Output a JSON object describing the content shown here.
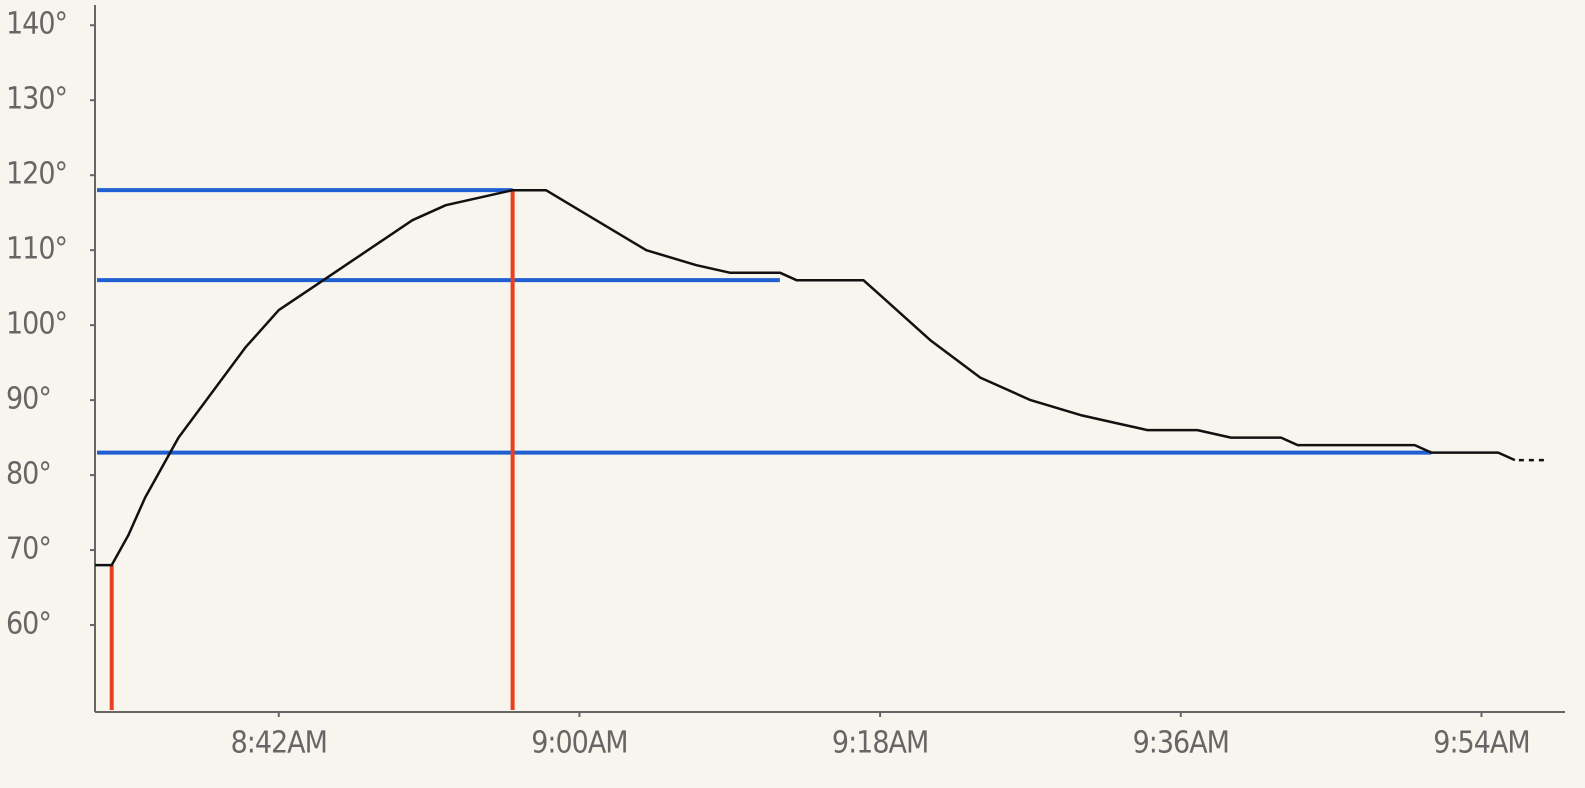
{
  "chart_data": {
    "type": "line",
    "color": "#111111",
    "x": [
      "8:31AM",
      "8:32AM",
      "8:33AM",
      "8:34AM",
      "8:36AM",
      "8:38AM",
      "8:40AM",
      "8:42AM",
      "8:44AM",
      "8:46AM",
      "8:48AM",
      "8:50AM",
      "8:52AM",
      "8:54AM",
      "8:56AM",
      "8:58AM",
      "9:01AM",
      "9:04AM",
      "9:07AM",
      "9:09AM",
      "9:12AM",
      "9:13AM",
      "9:17AM",
      "9:18AM",
      "9:21AM",
      "9:24AM",
      "9:27AM",
      "9:30AM",
      "9:32AM",
      "9:34AM",
      "9:37AM",
      "9:39AM",
      "9:42AM",
      "9:43AM",
      "9:50AM",
      "9:51AM",
      "9:55AM",
      "9:56AM"
    ],
    "values": [
      68,
      68,
      72,
      77,
      85,
      91,
      97,
      102,
      105,
      108,
      111,
      114,
      116,
      117,
      118,
      118,
      114,
      110,
      108,
      107,
      107,
      106,
      106,
      104,
      98,
      93,
      90,
      88,
      87,
      86,
      86,
      85,
      85,
      84,
      84,
      83,
      83,
      82
    ],
    "xlim": [
      "8:31AM",
      "9:59AM"
    ],
    "xticks": [
      "8:42AM",
      "9:00AM",
      "9:18AM",
      "9:36AM",
      "9:54AM"
    ],
    "ylim": [
      48.4,
      142.7
    ],
    "yticks": [
      {
        "value": 60,
        "label": "60°"
      },
      {
        "value": 70,
        "label": "70°"
      },
      {
        "value": 80,
        "label": "80°"
      },
      {
        "value": 90,
        "label": "90°"
      },
      {
        "value": 100,
        "label": "100°"
      },
      {
        "value": 110,
        "label": "110°"
      },
      {
        "value": 120,
        "label": "120°"
      },
      {
        "value": 130,
        "label": "130°"
      },
      {
        "value": 140,
        "label": "140°"
      }
    ],
    "hlines": [
      {
        "value": 118,
        "end": "8:56AM",
        "color": "#1f5fd1"
      },
      {
        "value": 106,
        "end": "9:12AM",
        "color": "#1f5fd1"
      },
      {
        "value": 83,
        "end": "9:51AM",
        "color": "#1f5fd1"
      }
    ],
    "vlines": [
      {
        "x": "8:32AM",
        "value": 68,
        "color": "#e8401f"
      },
      {
        "x": "8:56AM",
        "value": 118,
        "color": "#e8401f"
      }
    ]
  }
}
